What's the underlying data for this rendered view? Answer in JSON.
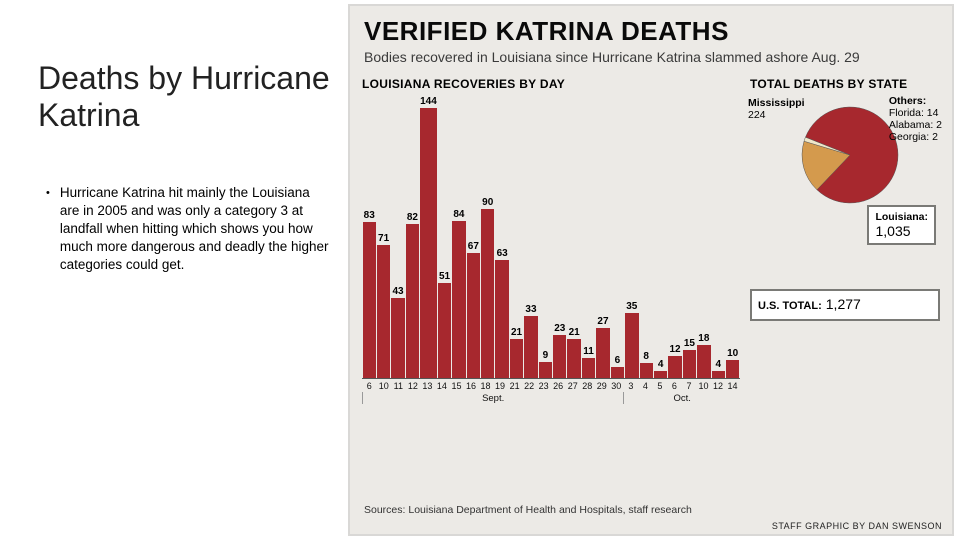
{
  "left": {
    "title": "Deaths by Hurricane Katrina",
    "bullet": "Hurricane Katrina hit mainly the Louisiana are in 2005 and was only a category 3 at landfall when hitting which shows you how much more dangerous and deadly the higher categories could get."
  },
  "info": {
    "title": "VERIFIED KATRINA DEATHS",
    "subtitle": "Bodies recovered in Louisiana since Hurricane Katrina slammed ashore Aug. 29",
    "sources": "Sources: Louisiana Department of Health and Hospitals, staff research",
    "credit": "STAFF GRAPHIC BY DAN SWENSON"
  },
  "bar_chart": {
    "type": "bar",
    "title": "LOUISIANA RECOVERIES BY DAY",
    "bar_color": "#a7282e",
    "background": "#eceae6",
    "ymax": 150,
    "label_fontsize": 10,
    "bars": [
      {
        "x": "6",
        "v": 83
      },
      {
        "x": "10",
        "v": 71
      },
      {
        "x": "11",
        "v": 43
      },
      {
        "x": "12",
        "v": 82
      },
      {
        "x": "13",
        "v": 144
      },
      {
        "x": "14",
        "v": 51
      },
      {
        "x": "15",
        "v": 84
      },
      {
        "x": "16",
        "v": 67
      },
      {
        "x": "18",
        "v": 90
      },
      {
        "x": "19",
        "v": 63
      },
      {
        "x": "21",
        "v": 21
      },
      {
        "x": "22",
        "v": 33
      },
      {
        "x": "23",
        "v": 9
      },
      {
        "x": "26",
        "v": 23
      },
      {
        "x": "27",
        "v": 21
      },
      {
        "x": "28",
        "v": 11
      },
      {
        "x": "29",
        "v": 27
      },
      {
        "x": "30",
        "v": 6
      },
      {
        "x": "3",
        "v": 35
      },
      {
        "x": "4",
        "v": 8
      },
      {
        "x": "5",
        "v": 4
      },
      {
        "x": "6",
        "v": 12
      },
      {
        "x": "7",
        "v": 15
      },
      {
        "x": "10",
        "v": 18
      },
      {
        "x": "12",
        "v": 4
      },
      {
        "x": "14",
        "v": 10
      }
    ],
    "months": [
      {
        "label": "Sept.",
        "span": 18
      },
      {
        "label": "Oct.",
        "span": 8
      }
    ]
  },
  "pie": {
    "type": "pie",
    "title": "TOTAL DEATHS BY STATE",
    "radius": 48,
    "slices": [
      {
        "label": "Louisiana",
        "value": 1035,
        "color": "#a7282e"
      },
      {
        "label": "Mississippi",
        "value": 224,
        "color": "#d49a4d"
      },
      {
        "label": "Others",
        "value": 18,
        "color": "#efe7c9",
        "detail": "Florida: 14\nAlabama: 2\nGeorgia: 2"
      }
    ],
    "us_total_label": "U.S. TOTAL:",
    "us_total_value": "1,277"
  }
}
